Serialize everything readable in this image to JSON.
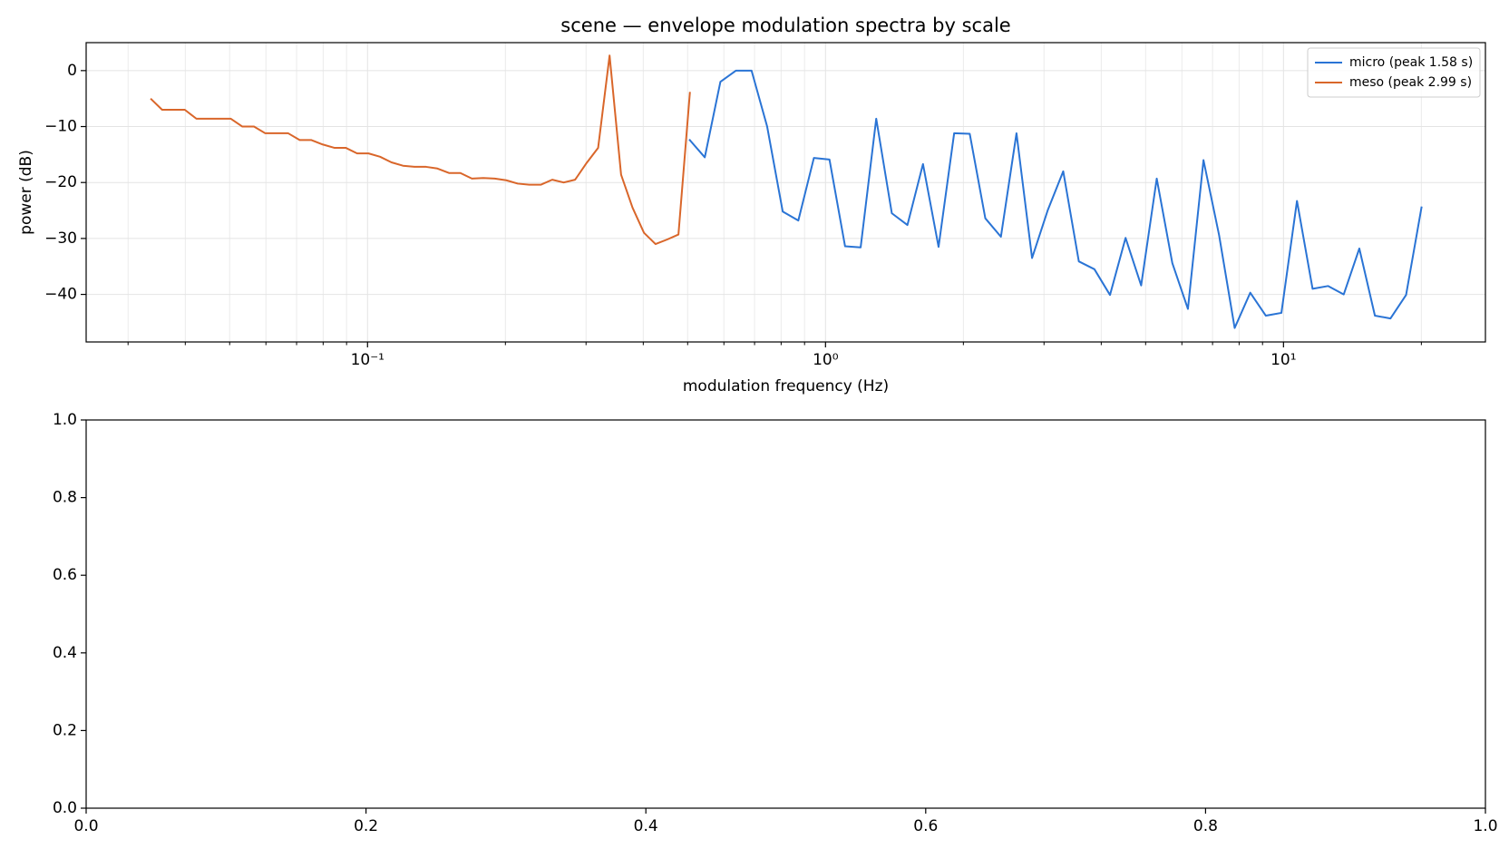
{
  "chart_data": [
    {
      "type": "line",
      "title": "scene — envelope modulation spectra by scale",
      "xlabel": "modulation frequency (Hz)",
      "ylabel": "power (dB)",
      "xscale": "log",
      "grid": true,
      "legend": "upper right",
      "xlim": [
        0.0243,
        27.6
      ],
      "ylim": [
        -48.5,
        5
      ],
      "xticks": [
        {
          "value": 0.1,
          "label": "10⁻¹"
        },
        {
          "value": 1,
          "label": "10⁰"
        },
        {
          "value": 10,
          "label": "10¹"
        }
      ],
      "xminorticks": [
        0.03,
        0.04,
        0.05,
        0.06,
        0.07,
        0.08,
        0.09,
        0.2,
        0.3,
        0.4,
        0.5,
        0.6,
        0.7,
        0.8,
        0.9,
        2,
        3,
        4,
        5,
        6,
        7,
        8,
        9,
        20
      ],
      "yticks": [
        {
          "value": -40,
          "label": "−40"
        },
        {
          "value": -30,
          "label": "−30"
        },
        {
          "value": -20,
          "label": "−20"
        },
        {
          "value": -10,
          "label": "−10"
        },
        0
      ],
      "series": [
        {
          "name": "micro (peak 1.58 s)",
          "color": "#2a74d5",
          "x": [
            0.504,
            0.545,
            0.5895,
            0.6376,
            0.6895,
            0.7457,
            0.8065,
            0.8722,
            0.9433,
            1.0202,
            1.1033,
            1.1932,
            1.2905,
            1.3957,
            1.5094,
            1.6324,
            1.7655,
            1.9094,
            2.065,
            2.2333,
            2.4153,
            2.6121,
            2.825,
            3.0553,
            3.3043,
            3.5736,
            3.8648,
            4.1798,
            4.5205,
            4.8889,
            5.2873,
            5.7182,
            6.1843,
            6.6883,
            7.2334,
            7.8229,
            8.4605,
            9.15,
            9.8957,
            10.702,
            11.575,
            12.518,
            13.538,
            14.642,
            15.835,
            17.125,
            18.521,
            20.03
          ],
          "values": [
            -12.3,
            -15.5,
            -2,
            0,
            0,
            -10,
            -25.2,
            -26.8,
            -15.6,
            -15.9,
            -31.4,
            -31.6,
            -8.6,
            -25.5,
            -27.6,
            -16.7,
            -31.5,
            -11.2,
            -11.3,
            -26.4,
            -29.7,
            -11.2,
            -33.5,
            -25,
            -18,
            -34.1,
            -35.5,
            -40.1,
            -29.9,
            -38.4,
            -19.3,
            -34.4,
            -42.6,
            -16,
            -29.4,
            -46,
            -39.7,
            -43.8,
            -43.3,
            -23.3,
            -39,
            -38.5,
            -40,
            -31.8,
            -43.8,
            -44.3,
            -40.1,
            -24.3
          ]
        },
        {
          "name": "meso (peak 2.99 s)",
          "color": "#d9662a",
          "x": [
            0.0336,
            0.0356,
            0.0377,
            0.0399,
            0.0423,
            0.0448,
            0.0475,
            0.0503,
            0.0533,
            0.0565,
            0.0598,
            0.0634,
            0.0671,
            0.0711,
            0.0753,
            0.0798,
            0.0846,
            0.0896,
            0.0949,
            0.1005,
            0.1065,
            0.1128,
            0.1195,
            0.1266,
            0.1342,
            0.1421,
            0.1506,
            0.1595,
            0.169,
            0.179,
            0.1896,
            0.2009,
            0.2128,
            0.2255,
            0.2389,
            0.2531,
            0.2681,
            0.284,
            0.3009,
            0.3188,
            0.3377,
            0.3578,
            0.379,
            0.4015,
            0.4254,
            0.4507,
            0.4774,
            0.5058
          ],
          "values": [
            -5,
            -7,
            -7,
            -7,
            -8.6,
            -8.6,
            -8.6,
            -8.6,
            -10,
            -10,
            -11.2,
            -11.2,
            -11.2,
            -12.4,
            -12.4,
            -13.2,
            -13.8,
            -13.8,
            -14.8,
            -14.8,
            -15.4,
            -16.4,
            -17,
            -17.2,
            -17.2,
            -17.5,
            -18.3,
            -18.3,
            -19.3,
            -19.2,
            -19.3,
            -19.6,
            -20.2,
            -20.4,
            -20.4,
            -19.5,
            -20,
            -19.5,
            -16.5,
            -13.8,
            2.7,
            -18.6,
            -24.5,
            -29,
            -31,
            -30.2,
            -29.3,
            -3.8
          ]
        }
      ]
    },
    {
      "type": "line",
      "xlim": [
        0,
        1
      ],
      "ylim": [
        0,
        1
      ],
      "xticks": [
        {
          "value": 0,
          "label": "0.0"
        },
        {
          "value": 0.2,
          "label": "0.2"
        },
        {
          "value": 0.4,
          "label": "0.4"
        },
        {
          "value": 0.6,
          "label": "0.6"
        },
        {
          "value": 0.8,
          "label": "0.8"
        },
        {
          "value": 1,
          "label": "1.0"
        }
      ],
      "yticks": [
        {
          "value": 0,
          "label": "0.0"
        },
        {
          "value": 0.2,
          "label": "0.2"
        },
        {
          "value": 0.4,
          "label": "0.4"
        },
        {
          "value": 0.6,
          "label": "0.6"
        },
        {
          "value": 0.8,
          "label": "0.8"
        },
        {
          "value": 1,
          "label": "1.0"
        }
      ],
      "series": []
    }
  ]
}
